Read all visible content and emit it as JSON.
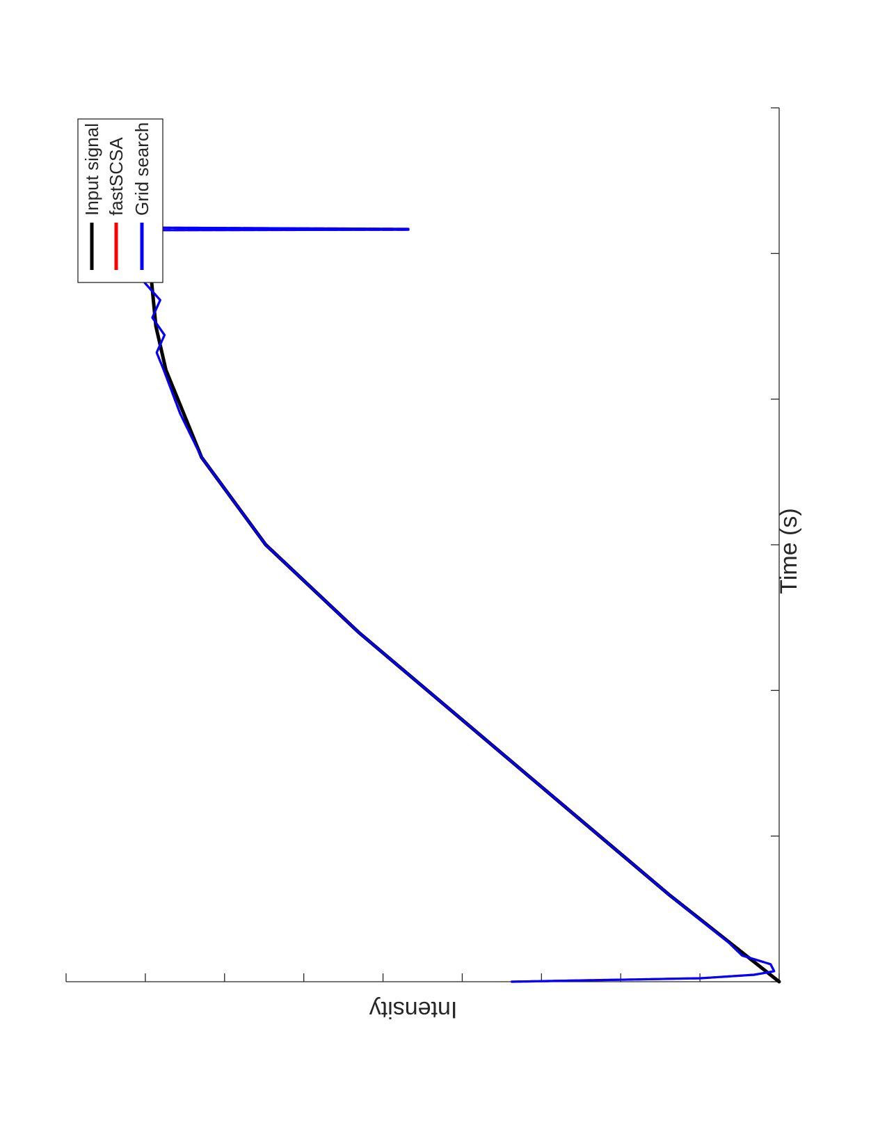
{
  "chart_data": {
    "type": "line",
    "title": "",
    "xlabel": "Time (s)",
    "ylabel": "Intensity",
    "grid": false,
    "legend_position": "top-left",
    "x_ticks": 7,
    "y_ticks": 10,
    "xlim": [
      0,
      1
    ],
    "ylim": [
      0,
      1
    ],
    "series": [
      {
        "name": "Input signal",
        "color": "#000000",
        "x": [
          0.0,
          0.1,
          0.2,
          0.3,
          0.4,
          0.5,
          0.6,
          0.7,
          0.75,
          0.8,
          0.85
        ],
        "y": [
          0.0,
          0.155,
          0.3,
          0.445,
          0.59,
          0.72,
          0.81,
          0.86,
          0.874,
          0.88,
          0.885
        ]
      },
      {
        "name": "fastSCSA",
        "color": "#ff0000",
        "x": [
          0.0,
          0.004,
          0.008,
          0.012,
          0.02,
          0.03,
          0.045,
          0.1,
          0.2,
          0.3,
          0.4,
          0.5,
          0.6,
          0.65,
          0.7,
          0.72,
          0.74,
          0.76,
          0.78,
          0.8,
          0.82,
          0.84,
          0.85,
          0.855,
          0.86,
          0.8605,
          0.8615,
          0.863
        ],
        "y": [
          0.375,
          0.11,
          0.035,
          0.007,
          0.012,
          0.052,
          0.071,
          0.155,
          0.3,
          0.445,
          0.59,
          0.72,
          0.81,
          0.84,
          0.863,
          0.873,
          0.862,
          0.879,
          0.868,
          0.89,
          0.872,
          0.895,
          0.878,
          0.9,
          0.88,
          0.52,
          0.52,
          0.9
        ]
      },
      {
        "name": "Grid search",
        "color": "#0000ff",
        "x": [
          0.0,
          0.004,
          0.008,
          0.012,
          0.02,
          0.03,
          0.045,
          0.1,
          0.2,
          0.3,
          0.4,
          0.5,
          0.6,
          0.65,
          0.7,
          0.72,
          0.74,
          0.76,
          0.78,
          0.8,
          0.82,
          0.84,
          0.85,
          0.855,
          0.86,
          0.8605,
          0.8615,
          0.863
        ],
        "y": [
          0.375,
          0.11,
          0.035,
          0.007,
          0.012,
          0.052,
          0.071,
          0.155,
          0.3,
          0.445,
          0.59,
          0.72,
          0.81,
          0.84,
          0.863,
          0.873,
          0.862,
          0.879,
          0.868,
          0.89,
          0.872,
          0.895,
          0.878,
          0.9,
          0.88,
          0.52,
          0.52,
          0.9
        ]
      }
    ]
  }
}
